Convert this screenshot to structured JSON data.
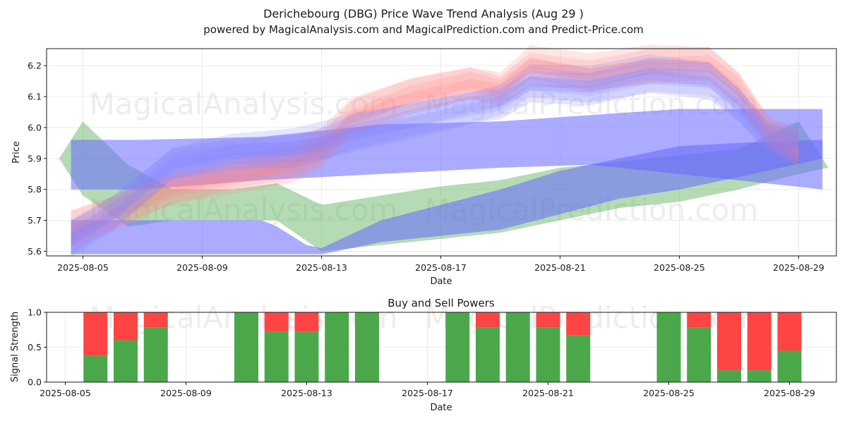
{
  "title": "Derichebourg (DBG) Price Wave Trend Analysis (Aug 29 )",
  "subtitle": "powered by MagicalAnalysis.com and MagicalPrediction.com and Predict-Price.com",
  "watermarks": [
    "MagicalAnalysis.com",
    "MagicalPrediction.com"
  ],
  "colors": {
    "buy": "#4aa84a",
    "sell": "#ff4444",
    "band_blue": "#6666ff",
    "band_green": "#5aaf5a",
    "band_red": "#ff8080"
  },
  "chart_data": [
    {
      "type": "area",
      "title": "",
      "xlabel": "Date",
      "ylabel": "Price",
      "ylim": [
        5.585,
        6.255
      ],
      "x_tick_labels": [
        "2025-08-05",
        "2025-08-09",
        "2025-08-13",
        "2025-08-17",
        "2025-08-21",
        "2025-08-25",
        "2025-08-29"
      ],
      "y_tick_labels": [
        "5.6",
        "5.7",
        "5.8",
        "5.9",
        "6.0",
        "6.1",
        "6.2"
      ],
      "series": [
        {
          "name": "green-band",
          "color": "#5aaf5a",
          "opacity": 0.45,
          "x": [
            4.2,
            5,
            6.5,
            8,
            10,
            11.5,
            13,
            15,
            17,
            19,
            21,
            23,
            25,
            27,
            29,
            30
          ],
          "upper": [
            5.9,
            6.02,
            5.88,
            5.8,
            5.8,
            5.82,
            5.75,
            5.78,
            5.81,
            5.83,
            5.87,
            5.89,
            5.91,
            5.93,
            6.02,
            5.87
          ],
          "lower": [
            5.9,
            5.78,
            5.68,
            5.7,
            5.7,
            5.7,
            5.6,
            5.62,
            5.64,
            5.66,
            5.7,
            5.74,
            5.76,
            5.8,
            5.85,
            5.87
          ]
        },
        {
          "name": "flat-blue-band-upper",
          "color": "#6666ff",
          "opacity": 0.55,
          "x": [
            4.6,
            7,
            11,
            15,
            19,
            22,
            25,
            29.8
          ],
          "upper": [
            5.96,
            5.96,
            5.97,
            6.01,
            6.02,
            6.04,
            6.06,
            6.06
          ],
          "lower": [
            5.8,
            5.8,
            5.83,
            5.85,
            5.87,
            5.88,
            5.85,
            5.8
          ]
        },
        {
          "name": "rising-blue-band-lower",
          "color": "#6666ff",
          "opacity": 0.55,
          "x": [
            4.6,
            8,
            11,
            11.5,
            12.5,
            13,
            15,
            19,
            21,
            23,
            25,
            27,
            29.8
          ],
          "upper": [
            5.7,
            5.7,
            5.7,
            5.68,
            5.62,
            5.61,
            5.7,
            5.8,
            5.86,
            5.9,
            5.94,
            5.95,
            5.96
          ],
          "lower": [
            5.59,
            5.59,
            5.59,
            5.59,
            5.59,
            5.59,
            5.63,
            5.67,
            5.72,
            5.77,
            5.8,
            5.84,
            5.9
          ]
        },
        {
          "name": "pink-wave-bands",
          "color": "#ff8080",
          "opacity": 0.2,
          "x": [
            4.6,
            6,
            8,
            10,
            12,
            13,
            14,
            16,
            18,
            19,
            20,
            22,
            24,
            26,
            27,
            28,
            29
          ],
          "center": [
            5.67,
            5.72,
            5.8,
            5.84,
            5.88,
            5.93,
            6.03,
            6.1,
            6.14,
            6.12,
            6.2,
            6.17,
            6.2,
            6.2,
            6.12,
            5.98,
            5.93
          ]
        },
        {
          "name": "blue-wave-bands",
          "color": "#8080ff",
          "opacity": 0.2,
          "x": [
            4.6,
            6,
            8,
            10,
            12,
            13,
            14,
            16,
            18,
            19,
            20,
            22,
            24,
            26,
            27,
            28,
            29
          ],
          "center": [
            5.64,
            5.72,
            5.88,
            5.92,
            5.93,
            5.95,
            5.98,
            6.02,
            6.06,
            6.08,
            6.14,
            6.13,
            6.17,
            6.15,
            6.07,
            5.96,
            5.95
          ]
        }
      ]
    },
    {
      "type": "bar",
      "title": "Buy and Sell Powers",
      "xlabel": "Date",
      "ylabel": "Signal Strength",
      "ylim": [
        0,
        1
      ],
      "x_tick_labels": [
        "2025-08-05",
        "2025-08-09",
        "2025-08-13",
        "2025-08-17",
        "2025-08-21",
        "2025-08-25",
        "2025-08-29"
      ],
      "y_tick_labels": [
        "0.0",
        "0.5",
        "1.0"
      ],
      "series": [
        {
          "name": "Buy",
          "color": "#4aa84a",
          "x": [
            6,
            7,
            8,
            11,
            12,
            13,
            14,
            15,
            18,
            19,
            20,
            21,
            22,
            25,
            26,
            27,
            28,
            29
          ],
          "values": [
            0.38,
            0.6,
            0.78,
            1.0,
            0.72,
            0.72,
            1.0,
            1.0,
            1.0,
            0.78,
            1.0,
            0.78,
            0.67,
            1.0,
            0.78,
            0.17,
            0.17,
            0.45
          ]
        },
        {
          "name": "Sell",
          "color": "#ff4444",
          "x": [
            6,
            7,
            8,
            11,
            12,
            13,
            14,
            15,
            18,
            19,
            20,
            21,
            22,
            25,
            26,
            27,
            28,
            29
          ],
          "values": [
            0.62,
            0.4,
            0.22,
            0.0,
            0.28,
            0.28,
            0.0,
            0.0,
            0.0,
            0.22,
            0.0,
            0.22,
            0.33,
            0.0,
            0.22,
            0.83,
            0.83,
            0.55
          ]
        }
      ]
    }
  ]
}
